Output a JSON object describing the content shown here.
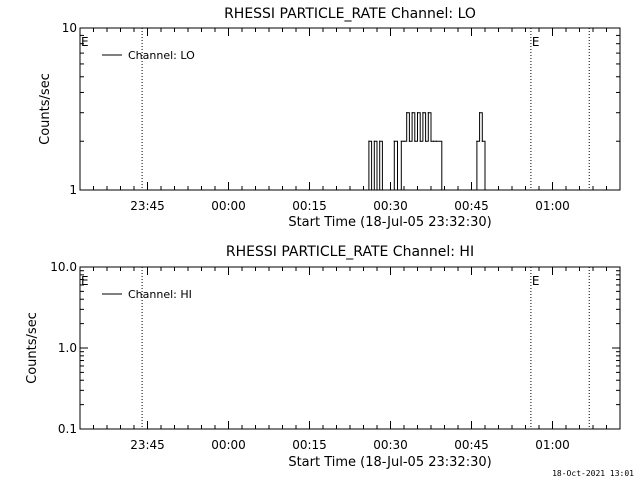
{
  "footer": {
    "timestamp": "18-Oct-2021 13:01"
  },
  "chart_data": [
    {
      "type": "line",
      "title": "RHESSI PARTICLE_RATE Channel: LO",
      "xlabel": "Start Time (18-Jul-05 23:32:30)",
      "ylabel": "Counts/sec",
      "yscale": "log",
      "ylim": [
        1,
        10
      ],
      "ytick_labels": [
        "1",
        "10"
      ],
      "ytick_values": [
        1,
        10
      ],
      "xtick_labels": [
        "23:45",
        "00:00",
        "00:15",
        "00:30",
        "00:45",
        "01:00"
      ],
      "xtick_minutes": [
        12.5,
        27.5,
        42.5,
        57.5,
        72.5,
        87.5
      ],
      "xlim_minutes": [
        0,
        100
      ],
      "legend": {
        "entries": [
          "Channel: LO"
        ],
        "position": "top-left"
      },
      "event_markers": [
        {
          "label": "E",
          "minute": 0
        },
        {
          "label": "E",
          "minute": 83.5
        }
      ],
      "dotted_verticals_minutes": [
        11.5,
        83.5,
        94.3
      ],
      "series": [
        {
          "name": "Channel: LO",
          "points": [
            [
              53.0,
              1
            ],
            [
              53.5,
              2
            ],
            [
              54.0,
              1
            ],
            [
              54.5,
              2
            ],
            [
              55.0,
              1
            ],
            [
              55.5,
              2
            ],
            [
              56.0,
              1
            ],
            [
              57.5,
              1
            ],
            [
              58.2,
              2
            ],
            [
              58.8,
              1
            ],
            [
              59.5,
              2
            ],
            [
              60.0,
              2
            ],
            [
              60.5,
              3
            ],
            [
              61.0,
              2
            ],
            [
              61.5,
              3
            ],
            [
              62.0,
              2
            ],
            [
              62.5,
              3
            ],
            [
              63.0,
              2
            ],
            [
              63.5,
              3
            ],
            [
              64.0,
              2
            ],
            [
              64.5,
              3
            ],
            [
              65.0,
              2
            ],
            [
              65.5,
              2
            ],
            [
              66.0,
              2
            ],
            [
              67.0,
              1
            ],
            [
              73.0,
              1
            ],
            [
              73.5,
              2
            ],
            [
              74.0,
              3
            ],
            [
              74.5,
              2
            ],
            [
              75.0,
              1
            ]
          ]
        }
      ]
    },
    {
      "type": "line",
      "title": "RHESSI PARTICLE_RATE Channel: HI",
      "xlabel": "Start Time (18-Jul-05 23:32:30)",
      "ylabel": "Counts/sec",
      "yscale": "log",
      "ylim": [
        0.1,
        10
      ],
      "ytick_labels": [
        "0.1",
        "1.0",
        "10.0"
      ],
      "ytick_values": [
        0.1,
        1,
        10
      ],
      "xtick_labels": [
        "23:45",
        "00:00",
        "00:15",
        "00:30",
        "00:45",
        "01:00"
      ],
      "xtick_minutes": [
        12.5,
        27.5,
        42.5,
        57.5,
        72.5,
        87.5
      ],
      "xlim_minutes": [
        0,
        100
      ],
      "legend": {
        "entries": [
          "Channel: HI"
        ],
        "position": "top-left"
      },
      "event_markers": [
        {
          "label": "E",
          "minute": 0
        },
        {
          "label": "E",
          "minute": 83.5
        }
      ],
      "dotted_verticals_minutes": [
        11.5,
        83.5,
        94.3
      ],
      "series": [
        {
          "name": "Channel: HI",
          "points": []
        }
      ]
    }
  ]
}
